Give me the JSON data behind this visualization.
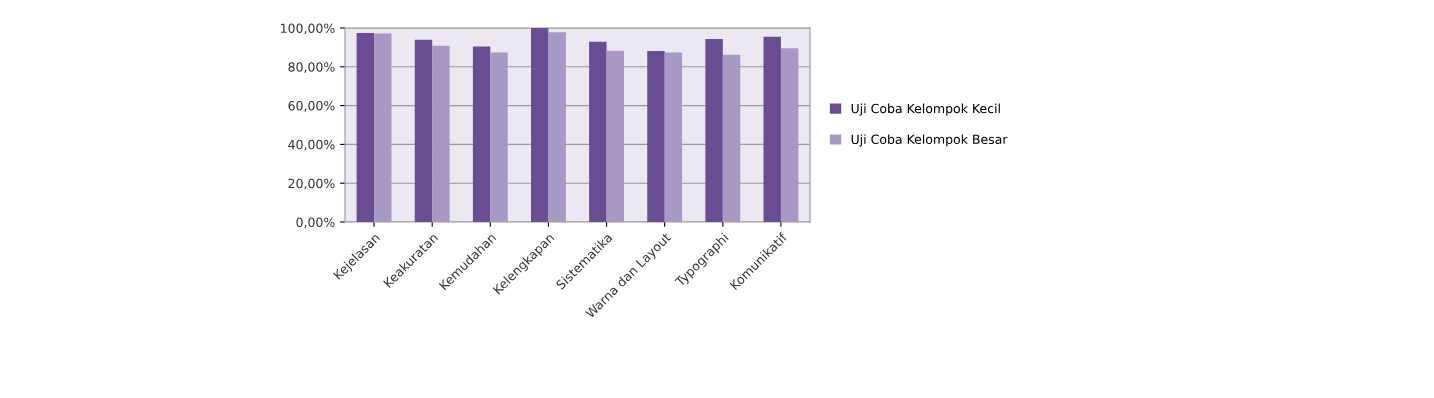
{
  "chart_data": {
    "type": "bar",
    "categories": [
      "Kejelasan",
      "Keakuratan",
      "Kemudahan",
      "Kelengkapan",
      "Sistematika",
      "Warna dan Layout",
      "Typographi",
      "Komunikatif"
    ],
    "series": [
      {
        "name": "Uji Coba Kelompok Kecil",
        "color": "#6a4c93",
        "values": [
          97.4,
          94.0,
          90.4,
          100.0,
          92.9,
          88.1,
          94.3,
          95.5
        ]
      },
      {
        "name": "Uji Coba Kelompok Besar",
        "color": "#a898c4",
        "values": [
          97.2,
          90.9,
          87.4,
          97.8,
          88.3,
          87.4,
          86.2,
          89.5
        ]
      }
    ],
    "ylim": [
      0,
      100
    ],
    "yticks": [
      {
        "value": 0,
        "label": "0,00%"
      },
      {
        "value": 20,
        "label": "20,00%"
      },
      {
        "value": 40,
        "label": "40,00%"
      },
      {
        "value": 60,
        "label": "60,00%"
      },
      {
        "value": 80,
        "label": "80,00%"
      },
      {
        "value": 100,
        "label": "100,00%"
      }
    ],
    "grid": "y",
    "legend": "right"
  }
}
